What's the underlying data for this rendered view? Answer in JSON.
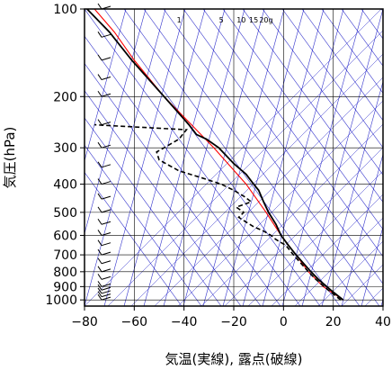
{
  "chart_data": {
    "type": "line",
    "title": "",
    "xlabel": "気温(実線), 露点(破線)",
    "ylabel": "気圧(hPa)",
    "xlim": [
      -80,
      40
    ],
    "ylim": [
      1050,
      100
    ],
    "y_scale": "log",
    "xticks": [
      -80,
      -60,
      -40,
      -20,
      0,
      20,
      40
    ],
    "xtick_labels": [
      "−80",
      "−60",
      "−40",
      "−20",
      "0",
      "20",
      "40"
    ],
    "yticks": [
      100,
      200,
      300,
      400,
      500,
      600,
      700,
      800,
      900,
      1000
    ],
    "ytick_labels": [
      "100",
      "200",
      "300",
      "400",
      "500",
      "600",
      "700",
      "800",
      "900",
      "1000"
    ],
    "mixing_ratio_labels": [
      {
        "text": "1",
        "temp": -42
      },
      {
        "text": "5",
        "temp": -25
      },
      {
        "text": "10",
        "temp": -17
      },
      {
        "text": "15",
        "temp": -12
      },
      {
        "text": "20g",
        "temp": -7
      }
    ],
    "series": [
      {
        "line_style": "solid",
        "color": "#000000",
        "points": [
          {
            "p": 1000,
            "t": 24
          },
          {
            "p": 925,
            "t": 19
          },
          {
            "p": 850,
            "t": 14
          },
          {
            "p": 800,
            "t": 11
          },
          {
            "p": 700,
            "t": 5
          },
          {
            "p": 650,
            "t": 2
          },
          {
            "p": 600,
            "t": -1
          },
          {
            "p": 550,
            "t": -3
          },
          {
            "p": 500,
            "t": -6
          },
          {
            "p": 460,
            "t": -8
          },
          {
            "p": 420,
            "t": -10
          },
          {
            "p": 400,
            "t": -12
          },
          {
            "p": 370,
            "t": -15
          },
          {
            "p": 340,
            "t": -20
          },
          {
            "p": 300,
            "t": -26
          },
          {
            "p": 280,
            "t": -31
          },
          {
            "p": 270,
            "t": -35
          },
          {
            "p": 250,
            "t": -38
          },
          {
            "p": 200,
            "t": -48
          },
          {
            "p": 150,
            "t": -61
          },
          {
            "p": 120,
            "t": -70
          },
          {
            "p": 100,
            "t": -79
          }
        ]
      },
      {
        "line_style": "dashed",
        "color": "#000000",
        "points": [
          {
            "p": 1000,
            "t": 23
          },
          {
            "p": 925,
            "t": 18
          },
          {
            "p": 850,
            "t": 13
          },
          {
            "p": 800,
            "t": 10
          },
          {
            "p": 700,
            "t": 4
          },
          {
            "p": 650,
            "t": 1
          },
          {
            "p": 620,
            "t": -3
          },
          {
            "p": 600,
            "t": -5
          },
          {
            "p": 580,
            "t": -8
          },
          {
            "p": 560,
            "t": -12
          },
          {
            "p": 540,
            "t": -15
          },
          {
            "p": 520,
            "t": -18
          },
          {
            "p": 500,
            "t": -16
          },
          {
            "p": 480,
            "t": -19
          },
          {
            "p": 460,
            "t": -13
          },
          {
            "p": 440,
            "t": -16
          },
          {
            "p": 420,
            "t": -20
          },
          {
            "p": 400,
            "t": -25
          },
          {
            "p": 380,
            "t": -33
          },
          {
            "p": 360,
            "t": -42
          },
          {
            "p": 330,
            "t": -50
          },
          {
            "p": 310,
            "t": -51
          },
          {
            "p": 300,
            "t": -48
          },
          {
            "p": 280,
            "t": -42
          },
          {
            "p": 260,
            "t": -39
          },
          {
            "p": 250,
            "t": -76
          }
        ]
      },
      {
        "line_style": "solid",
        "color": "#ff0000",
        "points": [
          {
            "p": 1000,
            "t": 24
          },
          {
            "p": 900,
            "t": 16
          },
          {
            "p": 800,
            "t": 10
          },
          {
            "p": 700,
            "t": 5
          },
          {
            "p": 600,
            "t": -1
          },
          {
            "p": 500,
            "t": -7
          },
          {
            "p": 400,
            "t": -15
          },
          {
            "p": 300,
            "t": -28
          },
          {
            "p": 200,
            "t": -48
          },
          {
            "p": 150,
            "t": -60
          },
          {
            "p": 120,
            "t": -68
          },
          {
            "p": 100,
            "t": -76
          }
        ]
      }
    ],
    "grid": true,
    "colors": {
      "grid": "#000000",
      "isolines": "#3333cc",
      "temperature": "#000000",
      "dewpoint": "#000000",
      "parcel": "#ff0000"
    }
  }
}
